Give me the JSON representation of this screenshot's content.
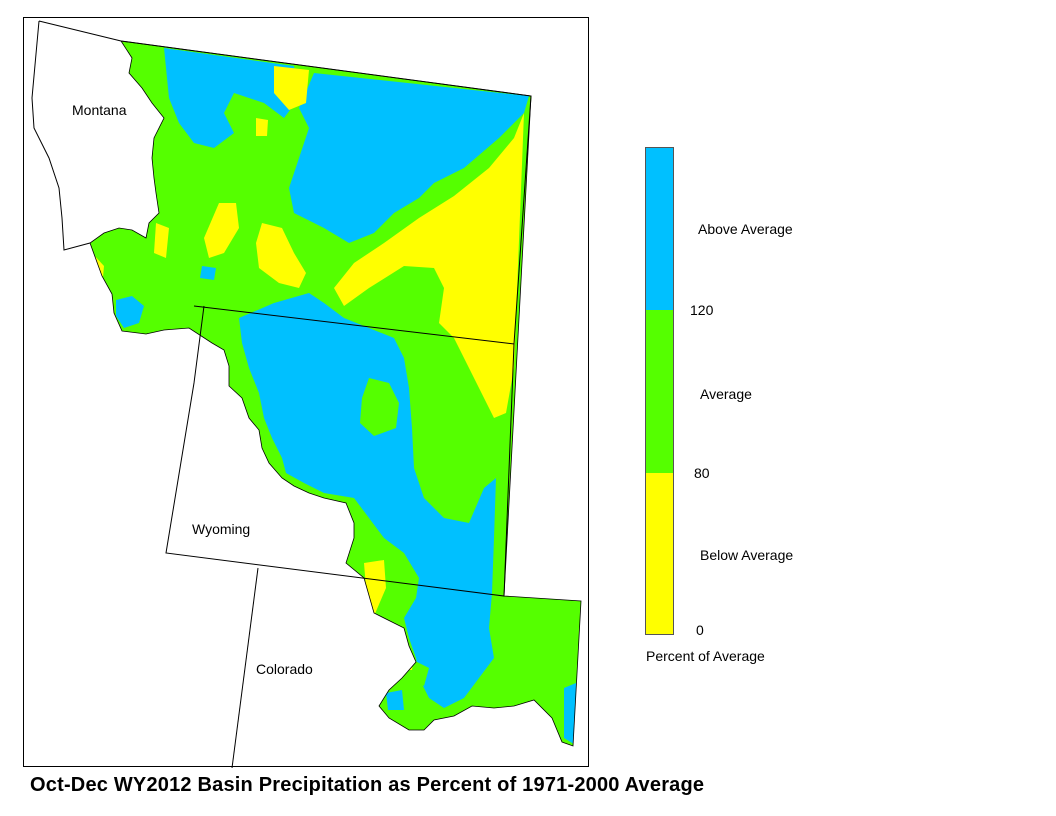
{
  "title": "Oct-Dec WY2012 Basin Precipitation as Percent of 1971-2000 Average",
  "states": [
    {
      "id": "montana",
      "label": "Montana"
    },
    {
      "id": "wyoming",
      "label": "Wyoming"
    },
    {
      "id": "colorado",
      "label": "Colorado"
    }
  ],
  "legend": {
    "title": "Percent of Average",
    "categories": [
      {
        "label": "Above Average",
        "range": [
          120,
          null
        ],
        "color": "#00c0ff"
      },
      {
        "label": "Average",
        "range": [
          80,
          120
        ],
        "color": "#55ff00"
      },
      {
        "label": "Below Average",
        "range": [
          0,
          80
        ],
        "color": "#ffff00"
      }
    ],
    "ticks": [
      "120",
      "80",
      "0"
    ]
  },
  "colors": {
    "above": "#00c0ff",
    "average": "#55ff00",
    "below": "#ffff00",
    "boundary": "#000000"
  }
}
